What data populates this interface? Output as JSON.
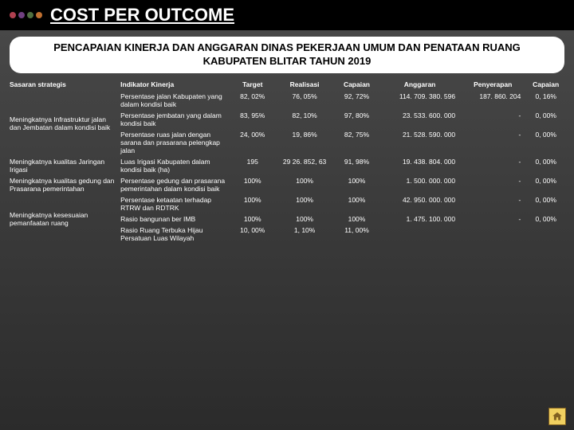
{
  "dots": [
    "#b04050",
    "#704080",
    "#507040",
    "#c07030"
  ],
  "title": "COST PER OUTCOME",
  "subtitle": "PENCAPAIAN KINERJA DAN ANGGARAN DINAS PEKERJAAN UMUM DAN PENATAAN RUANG KABUPATEN BLITAR TAHUN 2019",
  "headers": {
    "sasaran": "Sasaran strategis",
    "indikator": "Indikator Kinerja",
    "target": "Target",
    "realisasi": "Realisasi",
    "capaian": "Capaian",
    "anggaran": "Anggaran",
    "penyerapan": "Penyerapan",
    "capaian2": "Capaian"
  },
  "groups": [
    {
      "sasaran": "Meningkatnya Infrastruktur jalan dan Jembatan dalam kondisi baik",
      "rows": [
        {
          "indikator": "Persentase jalan Kabupaten yang dalam kondisi baik",
          "target": "82, 02%",
          "realisasi": "76, 05%",
          "capaian": "92, 72%",
          "anggaran": "114. 709. 380. 596",
          "penyerapan": "187. 860. 204",
          "capaian2": "0, 16%"
        },
        {
          "indikator": "Persentase jembatan yang dalam kondisi baik",
          "target": "83, 95%",
          "realisasi": "82, 10%",
          "capaian": "97, 80%",
          "anggaran": "23. 533. 600. 000",
          "penyerapan": "-",
          "capaian2": "0, 00%"
        },
        {
          "indikator": "Persentase ruas jalan dengan sarana dan prasarana pelengkap jalan",
          "target": "24, 00%",
          "realisasi": "19, 86%",
          "capaian": "82, 75%",
          "anggaran": "21. 528. 590. 000",
          "penyerapan": "-",
          "capaian2": "0, 00%"
        }
      ]
    },
    {
      "sasaran": "Meningkatnya kualitas Jaringan Irigasi",
      "rows": [
        {
          "indikator": "Luas Irigasi Kabupaten dalam kondisi baik (ha)",
          "target": "195",
          "realisasi": "29 26. 852, 63",
          "capaian": "91, 98%",
          "anggaran": "19. 438. 804. 000",
          "penyerapan": "-",
          "capaian2": "0, 00%"
        }
      ]
    },
    {
      "sasaran": "Meningkatnya kualitas gedung dan Prasarana pemerintahan",
      "rows": [
        {
          "indikator": "Persentase gedung dan prasarana pemerintahan dalam kondisi baik",
          "target": "100%",
          "realisasi": "100%",
          "capaian": "100%",
          "anggaran": "1. 500. 000. 000",
          "penyerapan": "-",
          "capaian2": "0, 00%"
        }
      ]
    },
    {
      "sasaran": "Meningkatnya kesesuaian pemanfaatan ruang",
      "rows": [
        {
          "indikator": "Persentase ketaatan terhadap RTRW dan RDTRK",
          "target": "100%",
          "realisasi": "100%",
          "capaian": "100%",
          "anggaran": "42. 950. 000. 000",
          "penyerapan": "-",
          "capaian2": "0, 00%"
        },
        {
          "indikator": "Rasio bangunan ber IMB",
          "target": "100%",
          "realisasi": "100%",
          "capaian": "100%",
          "anggaran": "1. 475. 100. 000",
          "penyerapan": "-",
          "capaian2": "0, 00%"
        },
        {
          "indikator": "Rasio Ruang Terbuka Hijau Persatuan Luas Wilayah",
          "target": "10, 00%",
          "realisasi": "1, 10%",
          "capaian": "11, 00%",
          "anggaran": "",
          "penyerapan": "",
          "capaian2": ""
        }
      ]
    }
  ]
}
